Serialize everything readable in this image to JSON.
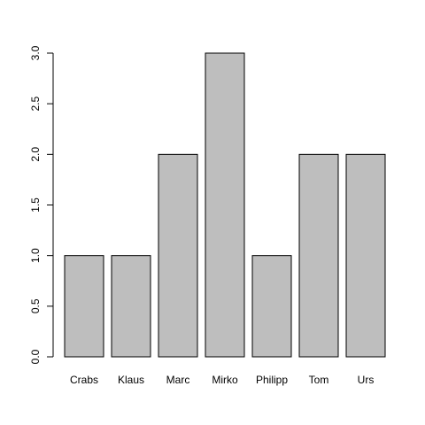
{
  "chart_data": {
    "type": "bar",
    "categories": [
      "Crabs",
      "Klaus",
      "Marc",
      "Mirko",
      "Philipp",
      "Tom",
      "Urs"
    ],
    "values": [
      1,
      1,
      2,
      3,
      1,
      2,
      2
    ],
    "title": "",
    "xlabel": "",
    "ylabel": "",
    "ylim": [
      0,
      3
    ],
    "yticks": [
      "0.0",
      "0.5",
      "1.0",
      "1.5",
      "2.0",
      "2.5",
      "3.0"
    ],
    "grid": false,
    "bar_color": "#bebebe",
    "bar_edge_color": "#000000"
  }
}
